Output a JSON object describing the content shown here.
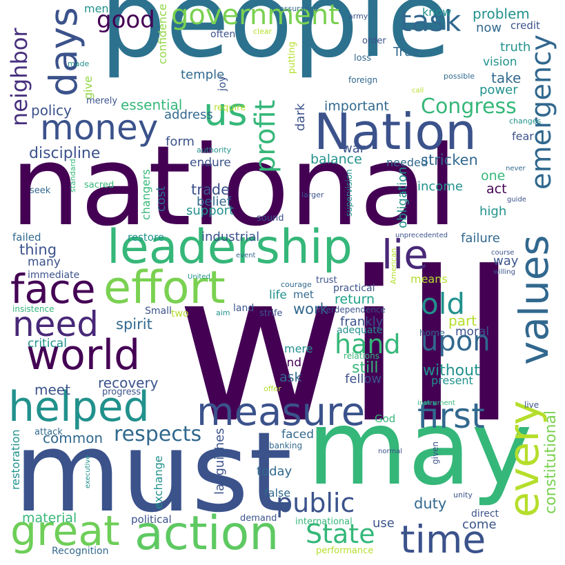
{
  "palette": {
    "dark_purple": "#440154",
    "indigo": "#3b528b",
    "blue": "#31688e",
    "teal": "#21918c",
    "green": "#35b779",
    "lime": "#90d743",
    "yellow": "#fde725"
  },
  "words": [
    {
      "t": "will",
      "c": "#440154"
    },
    {
      "t": "national",
      "c": "#440154"
    },
    {
      "t": "people",
      "c": "#2c728e"
    },
    {
      "t": "must",
      "c": "#3b528b"
    },
    {
      "t": "may",
      "c": "#35b779"
    },
    {
      "t": "leadership",
      "c": "#35b779"
    },
    {
      "t": "Nation",
      "c": "#3b528b"
    },
    {
      "t": "action",
      "c": "#5ec962"
    },
    {
      "t": "great",
      "c": "#6ece58"
    },
    {
      "t": "helped",
      "c": "#21918c"
    },
    {
      "t": "effort",
      "c": "#7ad151"
    },
    {
      "t": "world",
      "c": "#440154"
    },
    {
      "t": "measure",
      "c": "#3b528b"
    },
    {
      "t": "time",
      "c": "#3b528b"
    },
    {
      "t": "first",
      "c": "#31688e"
    },
    {
      "t": "money",
      "c": "#3b528b"
    },
    {
      "t": "face",
      "c": "#440154"
    },
    {
      "t": "need",
      "c": "#482878"
    },
    {
      "t": "values",
      "c": "#31688e"
    },
    {
      "t": "every",
      "c": "#b5de2b"
    },
    {
      "t": "days",
      "c": "#3b528b"
    },
    {
      "t": "us",
      "c": "#35b779"
    },
    {
      "t": "government",
      "c": "#7ad151"
    },
    {
      "t": "task",
      "c": "#31688e"
    },
    {
      "t": "public",
      "c": "#3b528b"
    },
    {
      "t": "lie",
      "c": "#482878"
    },
    {
      "t": "upon",
      "c": "#31688e"
    },
    {
      "t": "hand",
      "c": "#35b779"
    },
    {
      "t": "old",
      "c": "#21918c"
    },
    {
      "t": "State",
      "c": "#35b779"
    },
    {
      "t": "profit",
      "c": "#35b779"
    },
    {
      "t": "emergency",
      "c": "#31688e"
    },
    {
      "t": "respects",
      "c": "#31688e"
    },
    {
      "t": "Congress",
      "c": "#35b779"
    },
    {
      "t": "good",
      "c": "#440154"
    },
    {
      "t": "neighbor",
      "c": "#472f7d"
    },
    {
      "t": "discipline",
      "c": "#3b528b"
    },
    {
      "t": "constitutional",
      "c": "#7ad151"
    },
    {
      "t": "problem",
      "c": "#21918c"
    },
    {
      "t": "truth",
      "c": "#21918c"
    },
    {
      "t": "take",
      "c": "#31688e"
    },
    {
      "t": "power",
      "c": "#21918c"
    },
    {
      "t": "now",
      "c": "#31688e"
    },
    {
      "t": "important",
      "c": "#31688e"
    },
    {
      "t": "policy",
      "c": "#3b528b"
    },
    {
      "t": "essential",
      "c": "#35b779"
    },
    {
      "t": "balance",
      "c": "#21918c"
    },
    {
      "t": "stricken",
      "c": "#31688e"
    },
    {
      "t": "spirit",
      "c": "#31688e"
    },
    {
      "t": "work",
      "c": "#31688e"
    },
    {
      "t": "return",
      "c": "#1fa187"
    },
    {
      "t": "frankly",
      "c": "#3b528b"
    },
    {
      "t": "moral",
      "c": "#3b528b"
    },
    {
      "t": "still",
      "c": "#35b779"
    },
    {
      "t": "without",
      "c": "#21918c"
    },
    {
      "t": "part",
      "c": "#b5de2b"
    },
    {
      "t": "recovery",
      "c": "#3b528b"
    },
    {
      "t": "common",
      "c": "#31688e"
    },
    {
      "t": "faced",
      "c": "#31688e"
    },
    {
      "t": "duty",
      "c": "#31688e"
    },
    {
      "t": "today",
      "c": "#31688e"
    },
    {
      "t": "material",
      "c": "#35b779"
    },
    {
      "t": "come",
      "c": "#3b528b"
    },
    {
      "t": "use",
      "c": "#3b528b"
    },
    {
      "t": "industrial",
      "c": "#3b528b"
    },
    {
      "t": "failure",
      "c": "#31688e"
    },
    {
      "t": "way",
      "c": "#3b528b"
    },
    {
      "t": "high",
      "c": "#21918c"
    },
    {
      "t": "act",
      "c": "#440154"
    },
    {
      "t": "one",
      "c": "#35b779"
    },
    {
      "t": "income",
      "c": "#21918c"
    },
    {
      "t": "trade",
      "c": "#3b528b"
    },
    {
      "t": "belief",
      "c": "#31688e"
    },
    {
      "t": "support",
      "c": "#21918c"
    },
    {
      "t": "cost",
      "c": "#31688e"
    },
    {
      "t": "endure",
      "c": "#3b528b"
    },
    {
      "t": "form",
      "c": "#3b528b"
    },
    {
      "t": "address",
      "c": "#31688e"
    },
    {
      "t": "temple",
      "c": "#31688e"
    },
    {
      "t": "war",
      "c": "#3b528b"
    },
    {
      "t": "True",
      "c": "#31688e"
    },
    {
      "t": "vision",
      "c": "#21918c"
    },
    {
      "t": "credit",
      "c": "#3b528b"
    },
    {
      "t": "know",
      "c": "#21918c"
    },
    {
      "t": "men",
      "c": "#21918c"
    },
    {
      "t": "thing",
      "c": "#3b528b"
    },
    {
      "t": "failed",
      "c": "#31688e"
    },
    {
      "t": "restore",
      "c": "#21918c"
    },
    {
      "t": "many",
      "c": "#3b528b"
    },
    {
      "t": "critical",
      "c": "#21918c"
    },
    {
      "t": "meet",
      "c": "#3b528b"
    },
    {
      "t": "end",
      "c": "#440154"
    },
    {
      "t": "ask",
      "c": "#31688e"
    },
    {
      "t": "mere",
      "c": "#21918c"
    },
    {
      "t": "fellow",
      "c": "#3b528b"
    },
    {
      "t": "present",
      "c": "#21918c"
    },
    {
      "t": "life",
      "c": "#21918c"
    },
    {
      "t": "met",
      "c": "#31688e"
    },
    {
      "t": "means",
      "c": "#b5de2b"
    },
    {
      "t": "obligation",
      "c": "#21918c"
    },
    {
      "t": "dark",
      "c": "#3b528b"
    },
    {
      "t": "needed",
      "c": "#31688e"
    },
    {
      "t": "fear",
      "c": "#3b528b"
    },
    {
      "t": "changers",
      "c": "#35b779"
    },
    {
      "t": "exchange",
      "c": "#21918c"
    },
    {
      "t": "languishes",
      "c": "#3b528b"
    },
    {
      "t": "false",
      "c": "#31688e"
    },
    {
      "t": "God",
      "c": "#35b779"
    },
    {
      "t": "political",
      "c": "#3b528b"
    },
    {
      "t": "immediate",
      "c": "#3b528b"
    },
    {
      "t": "restoration",
      "c": "#21918c"
    },
    {
      "t": "confidence",
      "c": "#90d743"
    },
    {
      "t": "give",
      "c": "#90d743"
    },
    {
      "t": "merely",
      "c": "#3b528b"
    },
    {
      "t": "joy",
      "c": "#3b528b"
    },
    {
      "t": "often",
      "c": "#3b528b"
    },
    {
      "t": "clear",
      "c": "#b5de2b"
    },
    {
      "t": "army",
      "c": "#3b528b"
    },
    {
      "t": "assurance",
      "c": "#31688e"
    },
    {
      "t": "order",
      "c": "#3b528b"
    },
    {
      "t": "loss",
      "c": "#31688e"
    },
    {
      "t": "foreign",
      "c": "#31688e"
    },
    {
      "t": "putting",
      "c": "#b5de2b"
    },
    {
      "t": "possible",
      "c": "#31688e"
    },
    {
      "t": "call",
      "c": "#b5de2b"
    },
    {
      "t": "made",
      "c": "#21918c"
    },
    {
      "t": "require",
      "c": "#b5de2b"
    },
    {
      "t": "changes",
      "c": "#21918c"
    },
    {
      "t": "authority",
      "c": "#21918c"
    },
    {
      "t": "never",
      "c": "#31688e"
    },
    {
      "t": "seek",
      "c": "#31688e"
    },
    {
      "t": "sacred",
      "c": "#35b779"
    },
    {
      "t": "standard",
      "c": "#35b779"
    },
    {
      "t": "larger",
      "c": "#3b528b"
    },
    {
      "t": "supervision",
      "c": "#21918c"
    },
    {
      "t": "guide",
      "c": "#3b528b"
    },
    {
      "t": "sound",
      "c": "#3b528b"
    },
    {
      "t": "unprecedented",
      "c": "#3b528b"
    },
    {
      "t": "course",
      "c": "#3b528b"
    },
    {
      "t": "willing",
      "c": "#3b528b"
    },
    {
      "t": "event",
      "c": "#31688e"
    },
    {
      "t": "United",
      "c": "#21918c"
    },
    {
      "t": "American",
      "c": "#b5de2b"
    },
    {
      "t": "courage",
      "c": "#31688e"
    },
    {
      "t": "trust",
      "c": "#3b528b"
    },
    {
      "t": "practical",
      "c": "#3b528b"
    },
    {
      "t": "interdependence",
      "c": "#3b528b"
    },
    {
      "t": "insistence",
      "c": "#35b779"
    },
    {
      "t": "Small",
      "c": "#3b528b"
    },
    {
      "t": "two",
      "c": "#b5de2b"
    },
    {
      "t": "aim",
      "c": "#21918c"
    },
    {
      "t": "land",
      "c": "#3b528b"
    },
    {
      "t": "strife",
      "c": "#3b528b"
    },
    {
      "t": "adequate",
      "c": "#21918c"
    },
    {
      "t": "home",
      "c": "#31688e"
    },
    {
      "t": "relations",
      "c": "#35b779"
    },
    {
      "t": "progress",
      "c": "#3b528b"
    },
    {
      "t": "offer",
      "c": "#b5de2b"
    },
    {
      "t": "instrument",
      "c": "#35b779"
    },
    {
      "t": "live",
      "c": "#3b528b"
    },
    {
      "t": "attack",
      "c": "#31688e"
    },
    {
      "t": "banking",
      "c": "#31688e"
    },
    {
      "t": "given",
      "c": "#3b528b"
    },
    {
      "t": "normal",
      "c": "#3b528b"
    },
    {
      "t": "executive",
      "c": "#21918c"
    },
    {
      "t": "unity",
      "c": "#3b528b"
    },
    {
      "t": "direct",
      "c": "#3b528b"
    },
    {
      "t": "demand",
      "c": "#3b528b"
    },
    {
      "t": "international",
      "c": "#35b779"
    },
    {
      "t": "Recognition",
      "c": "#31688e"
    },
    {
      "t": "performance",
      "c": "#b5de2b"
    }
  ]
}
